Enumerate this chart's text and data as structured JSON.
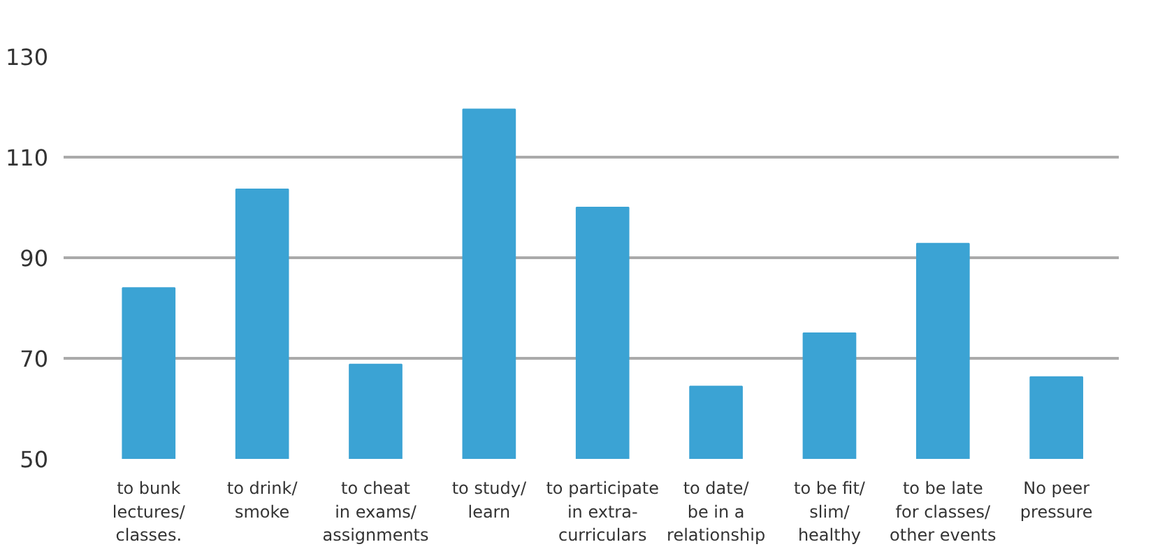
{
  "chart_data": {
    "type": "bar",
    "categories": [
      "to bunk\nlectures/\nclasses.",
      "to drink/\nsmoke",
      "to cheat\nin exams/\nassignments",
      "to study/\nlearn",
      "to participate\nin extra-\ncurriculars",
      "to date/\nbe in a\nrelationship",
      "to be fit/\nslim/\nhealthy",
      "to be late\nfor classes/\nother events",
      "No peer\npressure"
    ],
    "values": [
      84,
      103.6,
      68.8,
      119.5,
      100,
      64.4,
      75,
      92.8,
      66.3
    ],
    "color": "#3ba3d4",
    "ylim": [
      50,
      130
    ],
    "yticks": [
      50,
      70,
      90,
      110,
      130
    ],
    "grid": "y"
  }
}
